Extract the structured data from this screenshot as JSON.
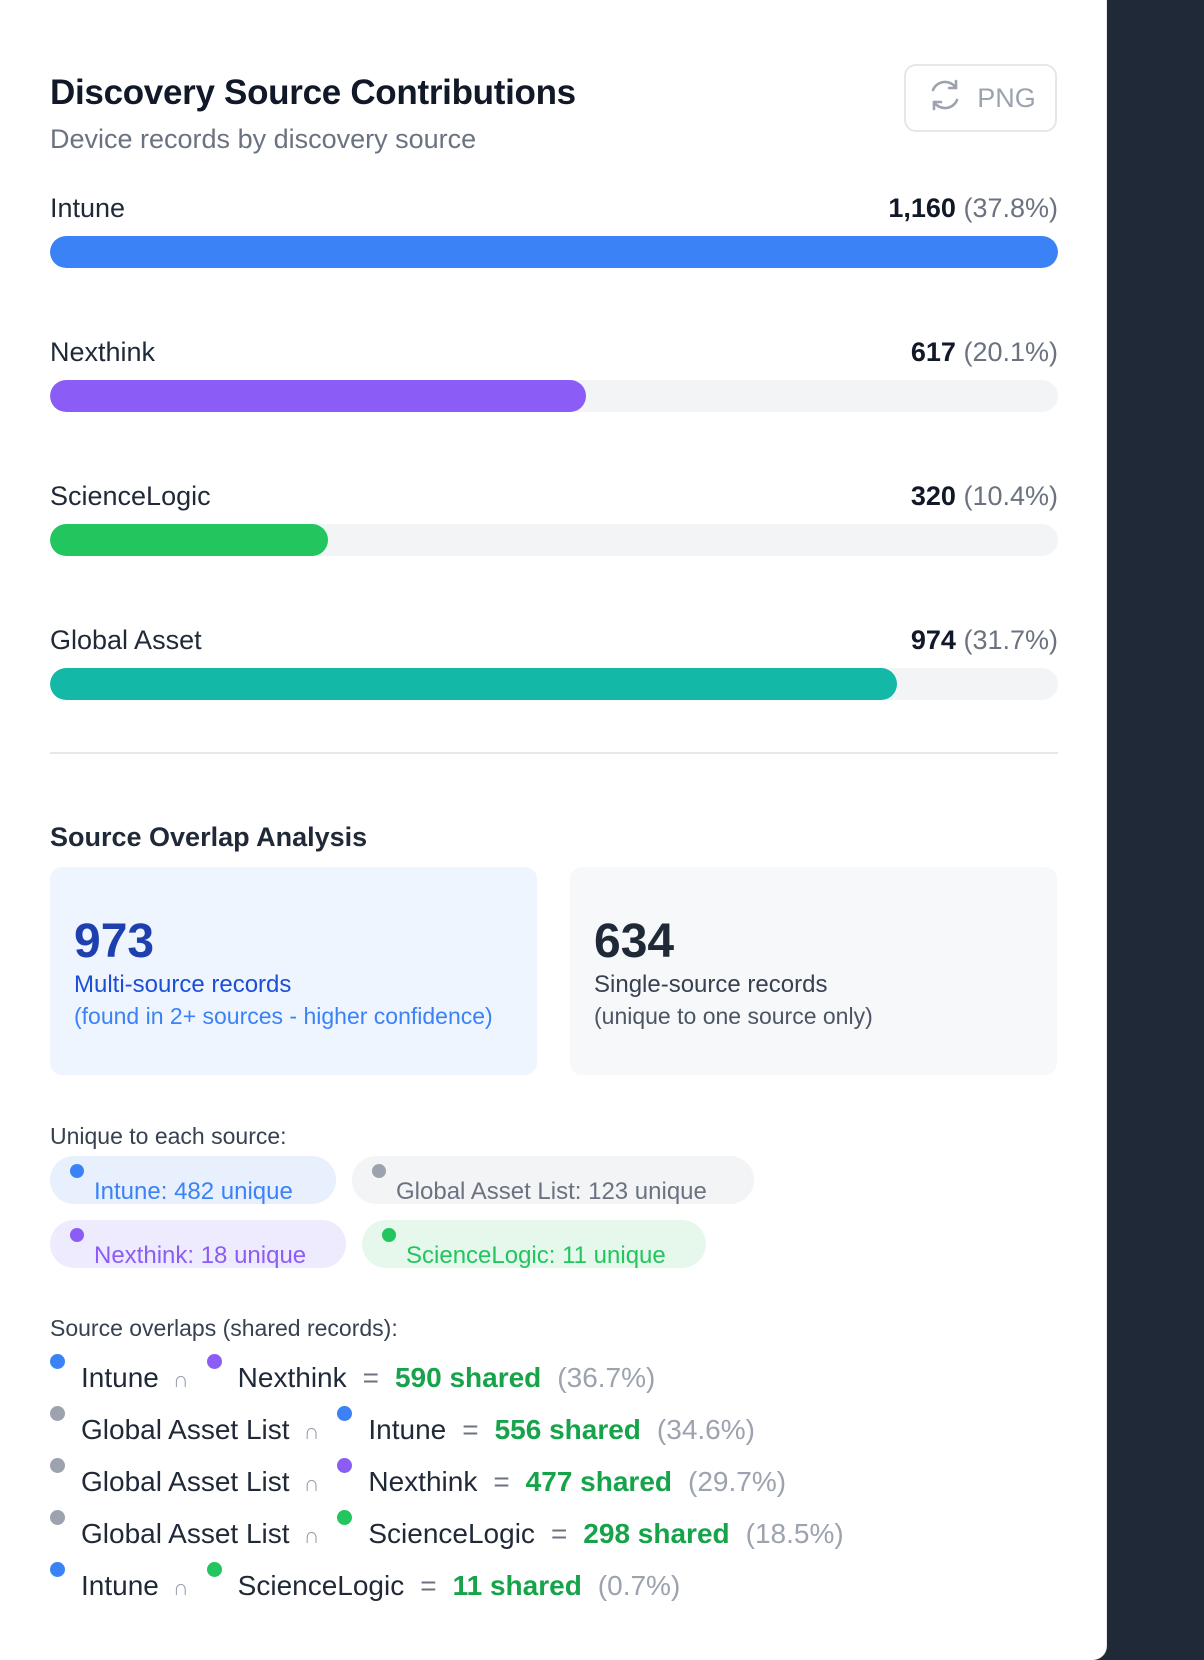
{
  "header": {
    "title": "Discovery Source Contributions",
    "subtitle": "Device records by discovery source",
    "png_label": "PNG"
  },
  "sources": [
    {
      "label": "Intune",
      "count": "1,160",
      "pct": "(37.8%)",
      "fraction": 1.0,
      "color": "#3b82f6"
    },
    {
      "label": "Nexthink",
      "count": "617",
      "pct": "(20.1%)",
      "fraction": 0.532,
      "color": "#8b5cf6"
    },
    {
      "label": "ScienceLogic",
      "count": "320",
      "pct": "(10.4%)",
      "fraction": 0.276,
      "color": "#22c55e"
    },
    {
      "label": "Global Asset",
      "count": "974",
      "pct": "(31.7%)",
      "fraction": 0.84,
      "color": "#14b8a6"
    }
  ],
  "overlap": {
    "title": "Source Overlap Analysis",
    "multi": {
      "number": "973",
      "label": "Multi-source records",
      "note": "(found in 2+ sources - higher confidence)"
    },
    "single": {
      "number": "634",
      "label": "Single-source records",
      "note": "(unique to one source only)"
    }
  },
  "unique": {
    "heading": "Unique to each source:",
    "chips": [
      {
        "text": "Intune: 482 unique",
        "dot": "#3b82f6",
        "bg": "#e8f0fd",
        "fg": "#3b82f6"
      },
      {
        "text": "Global Asset List: 123 unique",
        "dot": "#9ca3af",
        "bg": "#f3f4f6",
        "fg": "#6b7280"
      },
      {
        "text": "Nexthink: 18 unique",
        "dot": "#8b5cf6",
        "bg": "#efebfe",
        "fg": "#8b5cf6"
      },
      {
        "text": "ScienceLogic: 11 unique",
        "dot": "#22c55e",
        "bg": "#e6f8ec",
        "fg": "#22c55e"
      }
    ]
  },
  "overlaps": {
    "heading": "Source overlaps (shared records):",
    "cap": "∩",
    "eq": "=",
    "rows": [
      {
        "a": "Intune",
        "a_color": "#3b82f6",
        "b": "Nexthink",
        "b_color": "#8b5cf6",
        "shared": "590 shared",
        "pct": "(36.7%)"
      },
      {
        "a": "Global Asset List",
        "a_color": "#9ca3af",
        "b": "Intune",
        "b_color": "#3b82f6",
        "shared": "556 shared",
        "pct": "(34.6%)"
      },
      {
        "a": "Global Asset List",
        "a_color": "#9ca3af",
        "b": "Nexthink",
        "b_color": "#8b5cf6",
        "shared": "477 shared",
        "pct": "(29.7%)"
      },
      {
        "a": "Global Asset List",
        "a_color": "#9ca3af",
        "b": "ScienceLogic",
        "b_color": "#22c55e",
        "shared": "298 shared",
        "pct": "(18.5%)"
      },
      {
        "a": "Intune",
        "a_color": "#3b82f6",
        "b": "ScienceLogic",
        "b_color": "#22c55e",
        "shared": "11 shared",
        "pct": "(0.7%)"
      }
    ]
  }
}
